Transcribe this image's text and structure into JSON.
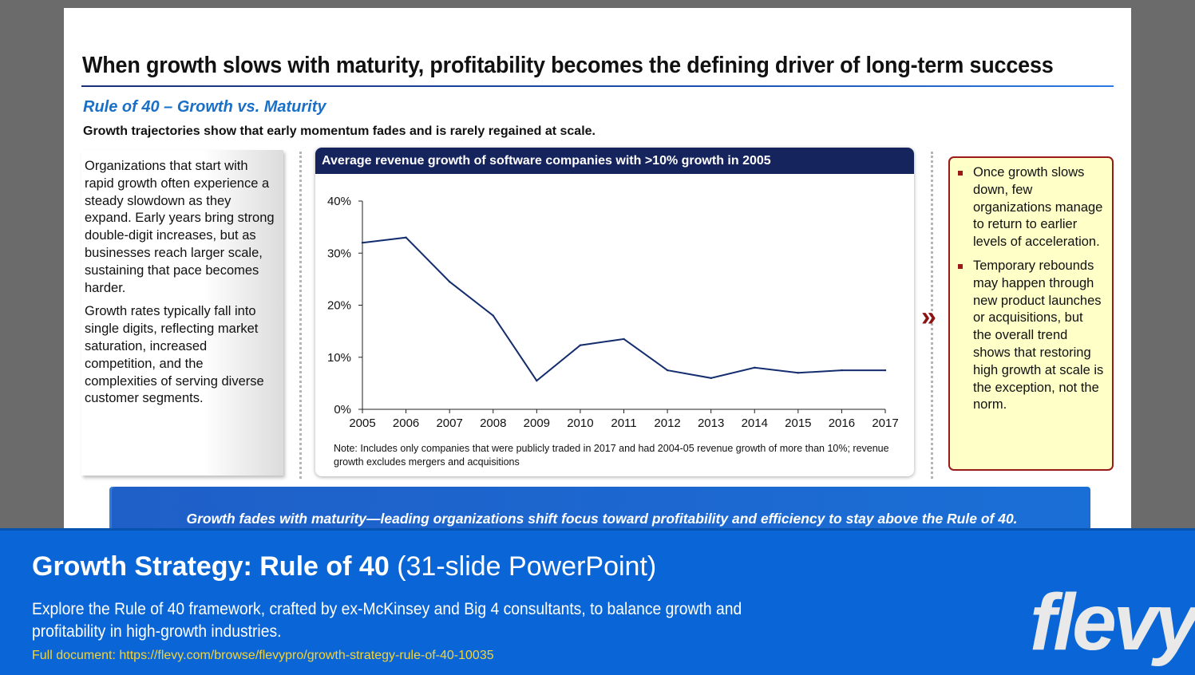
{
  "slide": {
    "title": "When growth slows with maturity, profitability becomes the defining driver of long-term success",
    "subtitle": "Rule of 40 – Growth vs. Maturity",
    "tagline": "Growth trajectories show that early momentum fades and is rarely regained at scale.",
    "left_paragraphs": [
      "Organizations that start with rapid growth often experience a steady slowdown as they expand. Early years bring strong double-digit increases, but as businesses reach larger scale, sustaining that pace becomes harder.",
      "Growth rates typically fall into single digits, reflecting market saturation, increased competition, and the complexities of serving diverse customer segments."
    ],
    "chart_header": "Average revenue growth of software companies with >10% growth in 2005",
    "chart_note": "Note: Includes only companies that were publicly traded in 2017 and had 2004-05 revenue growth of more than 10%; revenue growth excludes mergers and acquisitions",
    "arrow_icon": "»",
    "right_bullets": [
      "Once growth slows down, few organizations manage to return to earlier levels of acceleration.",
      "Temporary rebounds may happen through new product launches or acquisitions, but the overall trend shows that restoring high growth at scale is the exception, not the norm."
    ],
    "banner": "Growth fades with maturity—leading organizations shift focus toward profitability and efficiency to stay above the Rule of 40."
  },
  "chart_data": {
    "type": "line",
    "title": "Average revenue growth of software companies with >10% growth in 2005",
    "x": [
      "2005",
      "2006",
      "2007",
      "2008",
      "2009",
      "2010",
      "2011",
      "2012",
      "2013",
      "2014",
      "2015",
      "2016",
      "2017"
    ],
    "series": [
      {
        "name": "Average revenue growth",
        "values": [
          32,
          33,
          24.5,
          18,
          5.5,
          12.3,
          13.5,
          7.5,
          6,
          8,
          7,
          7.5,
          7.5
        ]
      }
    ],
    "yticks": [
      "0%",
      "10%",
      "20%",
      "30%",
      "40%"
    ],
    "ylim": [
      0,
      40
    ],
    "color": "#142d6e"
  },
  "footer": {
    "title_bold": "Growth Strategy: Rule of 40",
    "title_light": "(31-slide PowerPoint)",
    "description": "Explore the Rule of 40 framework, crafted by ex-McKinsey and Big 4 consultants, to balance growth and profitability in high-growth industries.",
    "link": "Full document: https://flevy.com/browse/flevypro/growth-strategy-rule-of-40-10035",
    "brand": "flevy"
  }
}
